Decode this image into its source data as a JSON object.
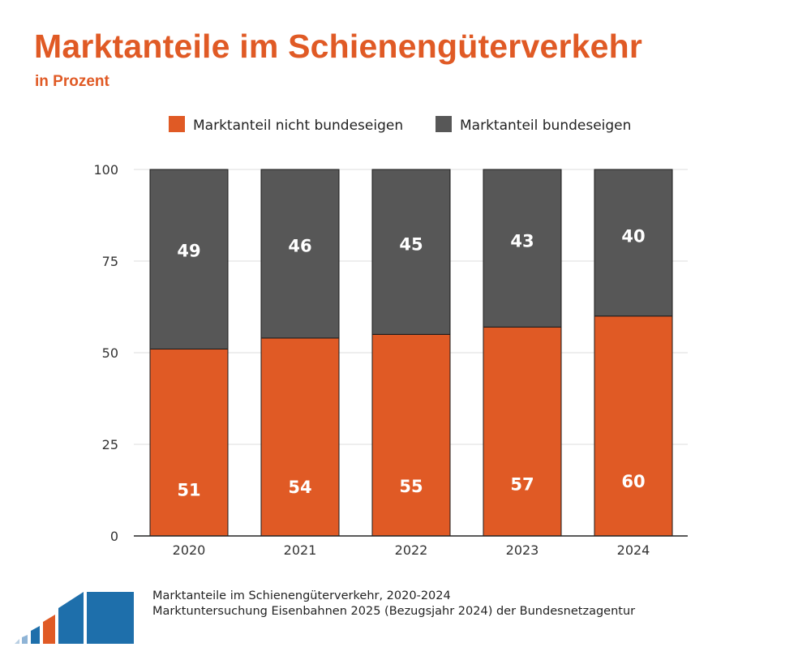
{
  "header": {
    "title": "Marktanteile im Schienengüterverkehr",
    "subtitle": "in Prozent"
  },
  "colors": {
    "accent": "#e05a25",
    "nicht_bundeseigen": "#e05a25",
    "bundeseigen": "#575757",
    "logo_dark": "#1e6fab",
    "logo_light": "#8fb4d6"
  },
  "chart_data": {
    "type": "bar",
    "stacked": true,
    "categories": [
      "2020",
      "2021",
      "2022",
      "2023",
      "2024"
    ],
    "series": [
      {
        "name": "Marktanteil nicht bundeseigen",
        "values": [
          51,
          54,
          55,
          57,
          60
        ]
      },
      {
        "name": "Marktanteil bundeseigen",
        "values": [
          49,
          46,
          45,
          43,
          40
        ]
      }
    ],
    "yticks": [
      "0",
      "25",
      "50",
      "75",
      "100"
    ],
    "ylim": [
      0,
      100
    ],
    "grid": true,
    "legend_position": "top-center",
    "data_labels": true
  },
  "footer": {
    "line1": "Marktanteile im Schienengüterverkehr, 2020-2024",
    "line2": "Marktuntersuchung Eisenbahnen 2025 (Bezugsjahr 2024) der Bundesnetzagentur"
  },
  "logo_icon": "bar-chart-logo-icon"
}
